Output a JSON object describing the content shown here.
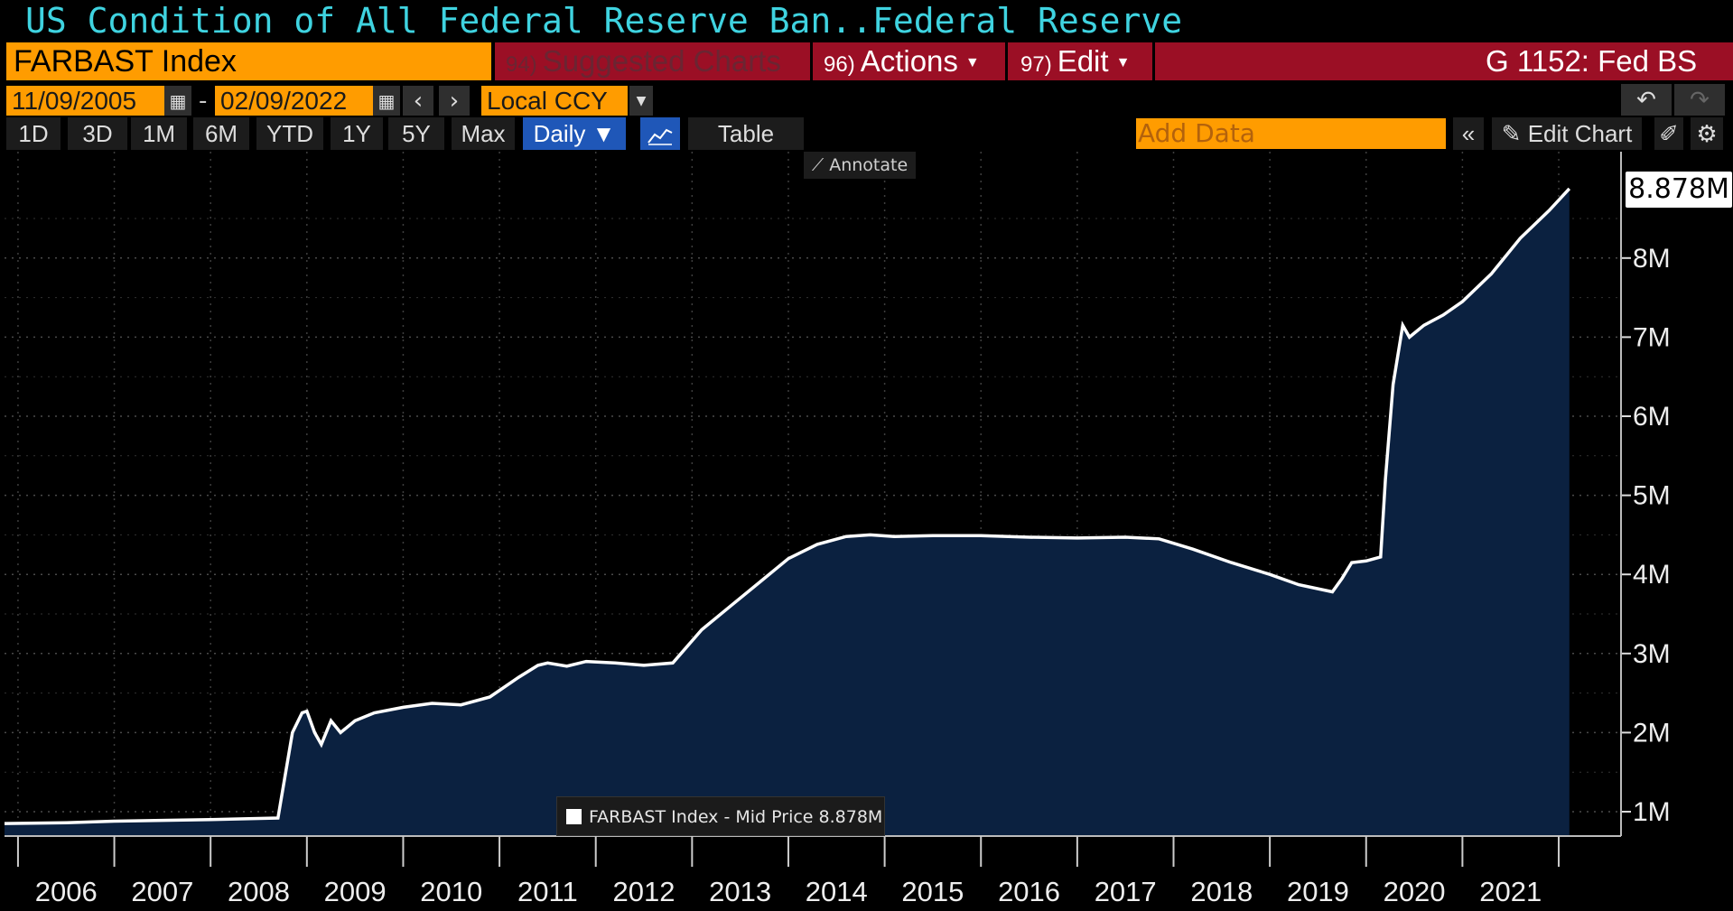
{
  "header": {
    "title": "US Condition of All Federal Reserve Ban...",
    "source": "Federal Reserve"
  },
  "toolbar": {
    "ticker": "FARBAST Index",
    "suggested_num": "94)",
    "suggested_label": "Suggested Charts",
    "actions_num": "96)",
    "actions_label": "Actions",
    "edit_num": "97)",
    "edit_label": "Edit",
    "function_code": "G 1152: Fed BS"
  },
  "date_range": {
    "start": "11/09/2005",
    "end": "02/09/2022",
    "separator": "-",
    "currency": "Local CCY"
  },
  "periods": [
    "1D",
    "3D",
    "1M",
    "6M",
    "YTD",
    "1Y",
    "5Y",
    "Max"
  ],
  "frequency": "Daily ▼",
  "table_label": "Table",
  "add_data_placeholder": "Add Data",
  "edit_chart_label": "Edit Chart",
  "annotate_label": "Annotate",
  "legend_text": "FARBAST Index - Mid Price 8.878M",
  "last_value_label": "8.878M",
  "colors": {
    "orange": "#ff9c00",
    "red_bar": "#9b0f25",
    "title_cyan": "#3fd3e0",
    "area_fill": "#0b2140",
    "line": "#ffffff",
    "active_blue": "#1f57b8"
  },
  "chart_data": {
    "type": "area",
    "x_ticks": [
      "2006",
      "2007",
      "2008",
      "2009",
      "2010",
      "2011",
      "2012",
      "2013",
      "2014",
      "2015",
      "2016",
      "2017",
      "2018",
      "2019",
      "2020",
      "2021"
    ],
    "y_ticks": [
      "1M",
      "2M",
      "3M",
      "4M",
      "5M",
      "6M",
      "7M",
      "8M"
    ],
    "ylim": [
      0.6,
      9.3
    ],
    "grid": true,
    "series": [
      {
        "name": "FARBAST Index - Mid Price",
        "x": [
          2005.86,
          2006.5,
          2007.0,
          2007.5,
          2008.0,
          2008.7,
          2008.85,
          2008.95,
          2009.0,
          2009.08,
          2009.15,
          2009.25,
          2009.35,
          2009.5,
          2009.7,
          2010.0,
          2010.3,
          2010.6,
          2010.9,
          2011.2,
          2011.4,
          2011.5,
          2011.7,
          2011.9,
          2012.2,
          2012.5,
          2012.8,
          2013.1,
          2013.4,
          2013.7,
          2014.0,
          2014.3,
          2014.6,
          2014.85,
          2015.1,
          2015.5,
          2016.0,
          2016.5,
          2017.0,
          2017.5,
          2017.85,
          2018.2,
          2018.6,
          2019.0,
          2019.3,
          2019.65,
          2019.75,
          2019.85,
          2020.0,
          2020.15,
          2020.2,
          2020.28,
          2020.38,
          2020.45,
          2020.6,
          2020.8,
          2021.0,
          2021.3,
          2021.6,
          2021.9,
          2022.11
        ],
        "y": [
          0.85,
          0.86,
          0.88,
          0.89,
          0.9,
          0.92,
          2.0,
          2.25,
          2.27,
          2.0,
          1.85,
          2.15,
          2.0,
          2.15,
          2.25,
          2.32,
          2.37,
          2.35,
          2.45,
          2.7,
          2.85,
          2.88,
          2.84,
          2.9,
          2.88,
          2.85,
          2.88,
          3.3,
          3.6,
          3.9,
          4.2,
          4.38,
          4.48,
          4.5,
          4.48,
          4.49,
          4.49,
          4.47,
          4.46,
          4.47,
          4.45,
          4.32,
          4.15,
          4.0,
          3.87,
          3.78,
          3.95,
          4.15,
          4.17,
          4.22,
          5.2,
          6.4,
          7.15,
          7.0,
          7.15,
          7.28,
          7.45,
          7.8,
          8.25,
          8.6,
          8.878
        ]
      }
    ]
  }
}
